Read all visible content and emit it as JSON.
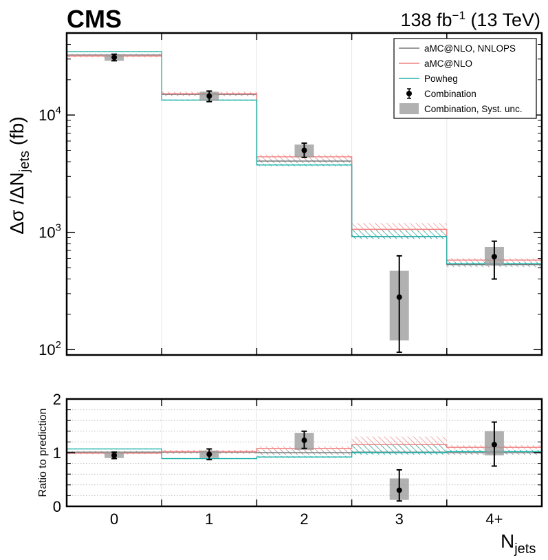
{
  "header": {
    "experiment": "CMS",
    "lumi_value": "138 fb",
    "lumi_exp": "−1",
    "energy": " (13 TeV)"
  },
  "chart_data": {
    "type": "bar",
    "categories": [
      "0",
      "1",
      "2",
      "3",
      "4+"
    ],
    "xlabel": "N",
    "xlabel_sub": "jets",
    "ylabel": "Δσ /ΔN",
    "ylabel_sub": "jets",
    "ylabel_unit": " (fb)",
    "yscale": "log",
    "ylim": [
      90,
      50000
    ],
    "yticks": [
      {
        "value": 100,
        "base": "10",
        "exp": "2"
      },
      {
        "value": 1000,
        "base": "10",
        "exp": "3"
      },
      {
        "value": 10000,
        "base": "10",
        "exp": "4"
      }
    ],
    "ratio": {
      "ylabel": "Ratio to prediction",
      "ylim": [
        0,
        2
      ],
      "yticks": [
        "0",
        "1",
        "2"
      ],
      "grid": [
        0.2,
        0.4,
        0.6,
        0.8,
        1.0,
        1.2,
        1.4,
        1.6,
        1.8
      ]
    },
    "legend_position": "top-right",
    "colors": {
      "nnlops": "#7a7a7a",
      "amcnlo": "#f08080",
      "powheg": "#20b2aa",
      "data": "#000000",
      "syst": "#9e9e9e"
    },
    "legend": [
      {
        "key": "nnlops",
        "label": "aMC@NLO, NNLOPS",
        "style": "line"
      },
      {
        "key": "amcnlo",
        "label": "aMC@NLO",
        "style": "line"
      },
      {
        "key": "powheg",
        "label": "Powheg",
        "style": "line"
      },
      {
        "key": "data",
        "label": "Combination",
        "style": "marker"
      },
      {
        "key": "syst",
        "label": "Combination, Syst. unc.",
        "style": "box"
      }
    ],
    "series": [
      {
        "key": "nnlops",
        "values": [
          32500,
          15000,
          4050,
          920,
          530
        ],
        "band_low": [
          31800,
          14500,
          3900,
          880,
          505
        ],
        "band_high": [
          33200,
          15500,
          4200,
          960,
          555
        ]
      },
      {
        "key": "amcnlo",
        "values": [
          31800,
          15200,
          4400,
          1060,
          580
        ],
        "band_low": [
          31000,
          14600,
          4200,
          1000,
          560
        ],
        "band_high": [
          32600,
          15800,
          4600,
          1200,
          600
        ]
      },
      {
        "key": "powheg",
        "values": [
          34700,
          13400,
          3750,
          920,
          540
        ],
        "band_low": [
          34300,
          13200,
          3650,
          880,
          520
        ],
        "band_high": [
          35100,
          13600,
          3850,
          1040,
          560
        ]
      }
    ],
    "combination": {
      "values": [
        31000,
        14500,
        5000,
        280,
        620
      ],
      "err_low": [
        2000,
        1500,
        650,
        185,
        220
      ],
      "err_high": [
        2000,
        1500,
        750,
        350,
        220
      ],
      "syst_low": [
        29000,
        13200,
        4350,
        120,
        520
      ],
      "syst_high": [
        33000,
        15800,
        5600,
        470,
        750
      ]
    },
    "ratio_points": {
      "values": [
        0.95,
        0.97,
        1.23,
        0.3,
        1.15
      ],
      "err_low": [
        0.06,
        0.1,
        0.15,
        0.2,
        0.4
      ],
      "err_high": [
        0.06,
        0.1,
        0.17,
        0.38,
        0.42
      ],
      "syst_low": [
        0.9,
        0.9,
        1.05,
        0.12,
        0.95
      ],
      "syst_high": [
        1.01,
        1.04,
        1.37,
        0.52,
        1.4
      ]
    },
    "ratio_series": [
      {
        "key": "nnlops",
        "values": [
          1.01,
          1.01,
          1.0,
          1.01,
          1.0
        ],
        "band_low": [
          0.98,
          0.98,
          0.96,
          0.97,
          0.96
        ],
        "band_high": [
          1.03,
          1.04,
          1.05,
          1.05,
          1.05
        ]
      },
      {
        "key": "amcnlo",
        "values": [
          0.99,
          1.02,
          1.08,
          1.15,
          1.1
        ],
        "band_low": [
          0.97,
          0.99,
          1.04,
          1.08,
          1.06
        ],
        "band_high": [
          1.01,
          1.05,
          1.12,
          1.3,
          1.14
        ]
      },
      {
        "key": "powheg",
        "values": [
          1.07,
          0.89,
          0.92,
          1.0,
          1.02
        ],
        "band_low": [
          1.06,
          0.88,
          0.9,
          0.96,
          0.99
        ],
        "band_high": [
          1.08,
          0.9,
          0.94,
          1.15,
          1.05
        ]
      }
    ]
  }
}
